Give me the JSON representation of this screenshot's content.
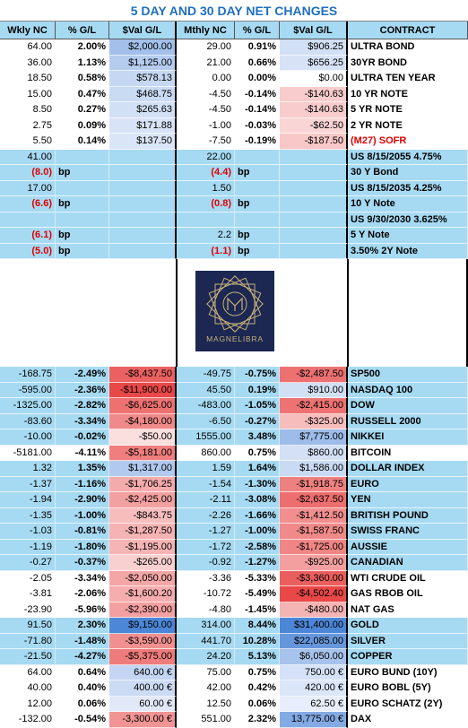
{
  "title": "5 DAY AND 30 DAY NET CHANGES",
  "header": [
    "Wkly NC",
    "% G/L",
    "$Val G/L",
    "Mthly NC",
    "% G/L",
    "$Val G/L",
    "CONTRACT"
  ],
  "sections": [
    {
      "background": "#ffffff",
      "rows": [
        [
          "64.00",
          "2.00%",
          "$2,000.00",
          "29.00",
          "0.91%",
          "$906.25",
          "ULTRA BOND"
        ],
        [
          "36.00",
          "1.13%",
          "$1,125.00",
          "21.00",
          "0.66%",
          "$656.25",
          "30YR BOND"
        ],
        [
          "18.50",
          "0.58%",
          "$578.13",
          "0.00",
          "0.00%",
          "$0.00",
          "ULTRA TEN YEAR"
        ],
        [
          "15.00",
          "0.47%",
          "$468.75",
          "-4.50",
          "-0.14%",
          "-$140.63",
          "10 YR NOTE"
        ],
        [
          "8.50",
          "0.27%",
          "$265.63",
          "-4.50",
          "-0.14%",
          "-$140.63",
          "5 YR NOTE"
        ],
        [
          "2.75",
          "0.09%",
          "$171.88",
          "-1.00",
          "-0.03%",
          "-$62.50",
          "2 YR NOTE"
        ],
        [
          "5.50",
          "0.14%",
          "$137.50",
          "-7.50",
          "-0.19%",
          "-$187.50",
          "(M27) SOFR"
        ]
      ]
    },
    {
      "background": "#a6daf2",
      "rows": [
        [
          "41.00",
          null,
          null,
          "22.00",
          null,
          null,
          "US 8/15/2055 4.75%"
        ],
        [
          "(8.0)",
          "bp",
          null,
          "(4.4)",
          "bp",
          null,
          "30 Y Bond"
        ],
        [
          "17.00",
          null,
          null,
          "1.50",
          null,
          null,
          "US 8/15/2035 4.25%"
        ],
        [
          "(6.6)",
          "bp",
          null,
          "(0.8)",
          "bp",
          null,
          "10 Y Note"
        ],
        [
          null,
          null,
          null,
          null,
          null,
          null,
          "US 9/30/2030 3.625%"
        ],
        [
          "(6.1)",
          "bp",
          null,
          "2.2",
          "bp",
          null,
          "5 Y  Note"
        ],
        [
          "(5.0)",
          "bp",
          null,
          "(1.1)",
          "bp",
          null,
          "3.50% 2Y Note"
        ]
      ]
    },
    {
      "background": "#ffffff",
      "logo": "MAGNELIBRA"
    },
    {
      "background": "#a6daf2",
      "rows": [
        [
          "-168.75",
          "-2.49%",
          "-$8,437.50",
          "-49.75",
          "-0.75%",
          "-$2,487.50",
          "SP500"
        ],
        [
          "-595.00",
          "-2.36%",
          "-$11,900.00",
          "45.50",
          "0.19%",
          "$910.00",
          "NASDAQ 100"
        ],
        [
          "-1325.00",
          "-2.82%",
          "-$6,625.00",
          "-483.00",
          "-1.05%",
          "-$2,415.00",
          "DOW"
        ],
        [
          "-83.60",
          "-3.34%",
          "-$4,180.00",
          "-6.50",
          "-0.27%",
          "-$325.00",
          "RUSSELL 2000"
        ],
        [
          "-10.00",
          "-0.02%",
          "-$50.00",
          "1555.00",
          "3.48%",
          "$7,775.00",
          "NIKKEI"
        ]
      ]
    },
    {
      "background": "#ffffff",
      "rows": [
        [
          "-5181.00",
          "-4.11%",
          "-$5,181.00",
          "860.00",
          "0.75%",
          "$860.00",
          "BITCOIN"
        ]
      ]
    },
    {
      "background": "#a6daf2",
      "rows": [
        [
          "1.32",
          "1.35%",
          "$1,317.00",
          "1.59",
          "1.64%",
          "$1,586.00",
          "DOLLAR INDEX"
        ],
        [
          "-1.37",
          "-1.16%",
          "-$1,706.25",
          "-1.54",
          "-1.30%",
          "-$1,918.75",
          "EURO"
        ],
        [
          "-1.94",
          "-2.90%",
          "-$2,425.00",
          "-2.11",
          "-3.08%",
          "-$2,637.50",
          "YEN"
        ],
        [
          "-1.35",
          "-1.00%",
          "-$843.75",
          "-2.26",
          "-1.66%",
          "-$1,412.50",
          "BRITISH POUND"
        ],
        [
          "-1.03",
          "-0.81%",
          "-$1,287.50",
          "-1.27",
          "-1.00%",
          "-$1,587.50",
          "SWISS FRANC"
        ],
        [
          "-1.19",
          "-1.80%",
          "-$1,195.00",
          "-1.72",
          "-2.58%",
          "-$1,725.00",
          "AUSSIE"
        ],
        [
          "-0.27",
          "-0.37%",
          "-$265.00",
          "-0.92",
          "-1.27%",
          "-$925.00",
          "CANADIAN"
        ]
      ]
    },
    {
      "background": "#ffffff",
      "rows": [
        [
          "-2.05",
          "-3.34%",
          "-$2,050.00",
          "-3.36",
          "-5.33%",
          "-$3,360.00",
          "WTI CRUDE OIL"
        ],
        [
          "-3.81",
          "-2.06%",
          "-$1,600.20",
          "-10.72",
          "-5.49%",
          "-$4,502.40",
          "GAS RBOB OIL"
        ],
        [
          "-23.90",
          "-5.96%",
          "-$2,390.00",
          "-4.80",
          "-1.45%",
          "-$480.00",
          "NAT GAS"
        ]
      ]
    },
    {
      "background": "#a6daf2",
      "rows": [
        [
          "91.50",
          "2.30%",
          "$9,150.00",
          "314.00",
          "8.44%",
          "$31,400.00",
          "GOLD"
        ],
        [
          "-71.80",
          "-1.48%",
          "-$3,590.00",
          "441.70",
          "10.28%",
          "$22,085.00",
          "SILVER"
        ],
        [
          "-21.50",
          "-4.27%",
          "-$5,375.00",
          "24.20",
          "5.13%",
          "$6,050.00",
          "COPPER"
        ]
      ]
    },
    {
      "background": "#ffffff",
      "rows": [
        [
          "64.00",
          "0.64%",
          "640.00 €",
          "75.00",
          "0.75%",
          "750.00 €",
          "EURO BUND (10Y)"
        ],
        [
          "40.00",
          "0.40%",
          "400.00 €",
          "42.00",
          "0.42%",
          "420.00 €",
          "EURO BOBL (5Y)"
        ],
        [
          "12.00",
          "0.06%",
          "60.00 €",
          "12.50",
          "0.06%",
          "62.50 €",
          "EURO SCHATZ (2Y)"
        ],
        [
          "-132.00",
          "-0.54%",
          "-3,300.00 €",
          "551.00",
          "2.32%",
          "13,775.00 €",
          "DAX"
        ]
      ]
    }
  ]
}
